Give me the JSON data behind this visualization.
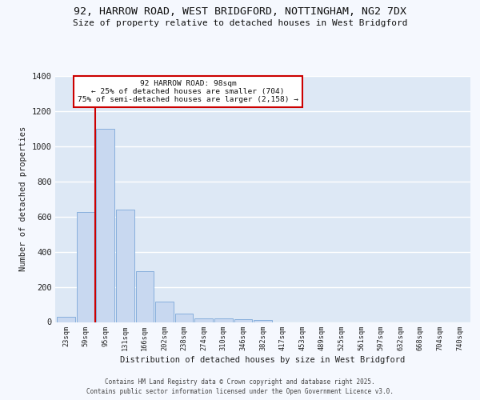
{
  "title_line1": "92, HARROW ROAD, WEST BRIDGFORD, NOTTINGHAM, NG2 7DX",
  "title_line2": "Size of property relative to detached houses in West Bridgford",
  "xlabel": "Distribution of detached houses by size in West Bridgford",
  "ylabel": "Number of detached properties",
  "categories": [
    "23sqm",
    "59sqm",
    "95sqm",
    "131sqm",
    "166sqm",
    "202sqm",
    "238sqm",
    "274sqm",
    "310sqm",
    "346sqm",
    "382sqm",
    "417sqm",
    "453sqm",
    "489sqm",
    "525sqm",
    "561sqm",
    "597sqm",
    "632sqm",
    "668sqm",
    "704sqm",
    "740sqm"
  ],
  "values": [
    30,
    625,
    1100,
    640,
    290,
    115,
    50,
    20,
    20,
    15,
    10,
    0,
    0,
    0,
    0,
    0,
    0,
    0,
    0,
    0,
    0
  ],
  "bar_color": "#c8d8f0",
  "bar_edge_color": "#7ba8d8",
  "vline_color": "#cc0000",
  "vline_pos": 1.5,
  "annotation_text": "92 HARROW ROAD: 98sqm\n← 25% of detached houses are smaller (704)\n75% of semi-detached houses are larger (2,158) →",
  "annotation_box_facecolor": "#ffffff",
  "annotation_box_edgecolor": "#cc0000",
  "ylim": [
    0,
    1400
  ],
  "yticks": [
    0,
    200,
    400,
    600,
    800,
    1000,
    1200,
    1400
  ],
  "bg_color": "#dde8f5",
  "grid_color": "#ffffff",
  "fig_bg_color": "#f5f8fe",
  "footer_line1": "Contains HM Land Registry data © Crown copyright and database right 2025.",
  "footer_line2": "Contains public sector information licensed under the Open Government Licence v3.0."
}
